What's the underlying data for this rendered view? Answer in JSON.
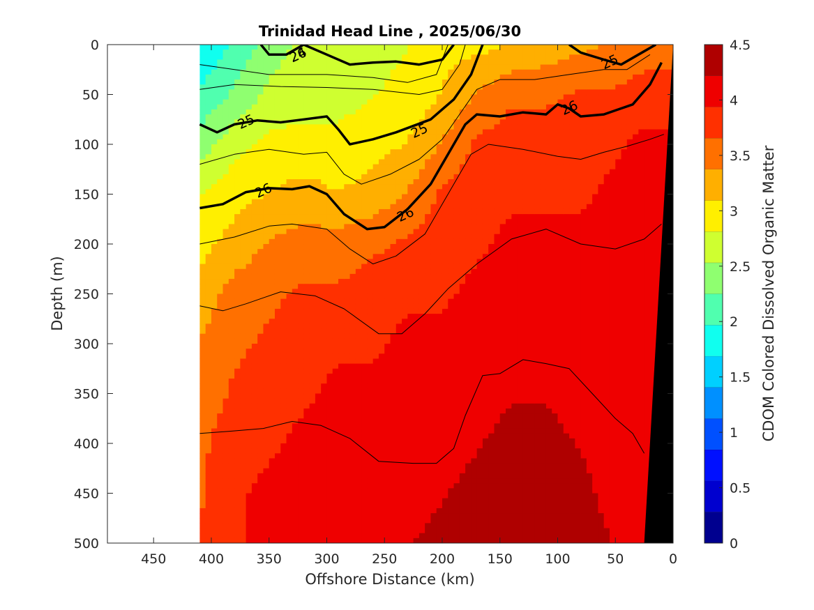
{
  "chart_data": {
    "type": "heatmap",
    "title": "Trinidad Head Line , 2025/06/30",
    "xlabel": "Offshore Distance (km)",
    "ylabel": "Depth (m)",
    "xlim": [
      490,
      0
    ],
    "ylim": [
      0,
      500
    ],
    "x_reversed": true,
    "y_reversed": true,
    "x_ticks": [
      450,
      400,
      350,
      300,
      250,
      200,
      150,
      100,
      50,
      0
    ],
    "y_ticks": [
      0,
      50,
      100,
      150,
      200,
      250,
      300,
      350,
      400,
      450,
      500
    ],
    "colorbar": {
      "label": "CDOM Colored Dissolved Organic Matter",
      "range": [
        0,
        4.5
      ],
      "ticks": [
        0,
        0.5,
        1,
        1.5,
        2,
        2.5,
        3,
        3.5,
        4,
        4.5
      ],
      "levels": [
        0,
        0.25,
        0.5,
        0.75,
        1,
        1.25,
        1.5,
        1.75,
        2,
        2.25,
        2.5,
        2.75,
        3,
        3.25,
        3.5,
        3.75,
        4,
        4.25,
        4.5
      ],
      "colors": [
        "#00008f",
        "#0000cf",
        "#0010ff",
        "#0050ff",
        "#0090ff",
        "#00d0ff",
        "#10ffef",
        "#50ffaf",
        "#8fff70",
        "#cfff30",
        "#ffef00",
        "#ffaf00",
        "#ff7000",
        "#ff3000",
        "#ef0000",
        "#af0000"
      ]
    },
    "data_extent_km": [
      410,
      0
    ],
    "cdom_field": {
      "x_km": [
        410,
        380,
        350,
        320,
        290,
        260,
        230,
        200,
        170,
        140,
        110,
        80,
        50,
        25
      ],
      "depth_m": [
        0,
        50,
        100,
        150,
        200,
        250,
        300,
        350,
        400,
        450,
        500
      ],
      "values": [
        [
          1.7,
          2.0,
          2.4,
          2.6,
          2.6,
          2.7,
          2.8,
          3.0,
          3.0,
          3.1,
          3.2,
          3.3,
          3.4,
          3.5
        ],
        [
          2.0,
          2.3,
          2.6,
          2.7,
          2.7,
          2.8,
          2.9,
          3.1,
          3.4,
          3.6,
          3.6,
          3.7,
          3.7,
          3.8
        ],
        [
          2.4,
          2.7,
          2.9,
          2.9,
          2.9,
          3.0,
          3.1,
          3.4,
          3.7,
          3.8,
          3.8,
          3.8,
          3.9,
          4.0
        ],
        [
          2.8,
          3.0,
          3.1,
          3.2,
          3.1,
          3.2,
          3.4,
          3.7,
          3.8,
          3.9,
          3.9,
          3.9,
          4.0,
          4.0
        ],
        [
          3.0,
          3.2,
          3.4,
          3.5,
          3.5,
          3.6,
          3.7,
          3.8,
          3.9,
          4.0,
          4.0,
          4.0,
          4.0,
          4.0
        ],
        [
          3.2,
          3.5,
          3.6,
          3.7,
          3.7,
          3.8,
          3.9,
          3.9,
          4.0,
          4.0,
          4.0,
          4.1,
          4.0,
          4.0
        ],
        [
          3.4,
          3.6,
          3.7,
          3.8,
          3.9,
          3.9,
          4.0,
          4.0,
          4.1,
          4.1,
          4.1,
          4.1,
          4.0,
          4.0
        ],
        [
          3.5,
          3.7,
          3.8,
          3.9,
          4.0,
          4.0,
          4.0,
          4.1,
          4.1,
          4.2,
          4.2,
          4.1,
          4.1,
          4.0
        ],
        [
          3.6,
          3.8,
          3.9,
          4.0,
          4.0,
          4.0,
          4.1,
          4.1,
          4.2,
          4.3,
          4.3,
          4.2,
          4.1,
          4.0
        ],
        [
          3.6,
          3.9,
          4.0,
          4.0,
          4.1,
          4.1,
          4.1,
          4.2,
          4.3,
          4.4,
          4.4,
          4.3,
          4.1,
          4.0
        ],
        [
          3.7,
          3.9,
          4.0,
          4.0,
          4.1,
          4.1,
          4.2,
          4.3,
          4.4,
          4.5,
          4.5,
          4.4,
          4.2,
          4.1
        ]
      ]
    },
    "contour_labels": [
      "24",
      "25",
      "25",
      "25",
      "26",
      "26",
      "26",
      "26"
    ],
    "density_contours": [
      {
        "label": "24",
        "bold": true,
        "points": [
          [
            357,
            0
          ],
          [
            350,
            10
          ],
          [
            335,
            10
          ],
          [
            320,
            0
          ],
          [
            300,
            10
          ],
          [
            280,
            20
          ],
          [
            260,
            18
          ],
          [
            240,
            17
          ],
          [
            220,
            20
          ],
          [
            200,
            15
          ],
          [
            190,
            0
          ]
        ]
      },
      {
        "label": "25",
        "bold": true,
        "points": [
          [
            410,
            80
          ],
          [
            395,
            88
          ],
          [
            380,
            80
          ],
          [
            360,
            76
          ],
          [
            340,
            78
          ],
          [
            320,
            75
          ],
          [
            300,
            72
          ],
          [
            290,
            85
          ],
          [
            280,
            100
          ],
          [
            260,
            95
          ],
          [
            240,
            88
          ],
          [
            210,
            75
          ],
          [
            190,
            55
          ],
          [
            175,
            30
          ],
          [
            165,
            0
          ]
        ]
      },
      {
        "label": "25",
        "bold": true,
        "points": [
          [
            90,
            0
          ],
          [
            80,
            8
          ],
          [
            60,
            15
          ],
          [
            45,
            20
          ],
          [
            30,
            10
          ],
          [
            15,
            0
          ]
        ]
      },
      {
        "label": "26",
        "bold": true,
        "points": [
          [
            410,
            164
          ],
          [
            390,
            160
          ],
          [
            370,
            148
          ],
          [
            350,
            144
          ],
          [
            330,
            145
          ],
          [
            315,
            142
          ],
          [
            300,
            150
          ],
          [
            285,
            170
          ],
          [
            265,
            185
          ],
          [
            250,
            183
          ],
          [
            230,
            165
          ],
          [
            210,
            140
          ],
          [
            195,
            110
          ],
          [
            180,
            80
          ],
          [
            170,
            70
          ],
          [
            150,
            72
          ],
          [
            130,
            68
          ],
          [
            110,
            70
          ],
          [
            100,
            60
          ],
          [
            90,
            64
          ],
          [
            80,
            72
          ],
          [
            60,
            70
          ],
          [
            35,
            60
          ],
          [
            20,
            40
          ],
          [
            10,
            18
          ]
        ]
      },
      {
        "points": [
          [
            410,
            20
          ],
          [
            380,
            25
          ],
          [
            350,
            30
          ],
          [
            300,
            30
          ],
          [
            260,
            33
          ],
          [
            230,
            38
          ],
          [
            205,
            30
          ],
          [
            195,
            0
          ]
        ]
      },
      {
        "points": [
          [
            410,
            45
          ],
          [
            380,
            40
          ],
          [
            340,
            42
          ],
          [
            300,
            43
          ],
          [
            260,
            45
          ],
          [
            220,
            50
          ],
          [
            200,
            45
          ],
          [
            185,
            20
          ],
          [
            180,
            0
          ]
        ]
      },
      {
        "points": [
          [
            410,
            120
          ],
          [
            380,
            110
          ],
          [
            350,
            105
          ],
          [
            320,
            110
          ],
          [
            300,
            108
          ],
          [
            285,
            130
          ],
          [
            270,
            140
          ],
          [
            245,
            130
          ],
          [
            220,
            115
          ],
          [
            200,
            95
          ],
          [
            185,
            70
          ],
          [
            170,
            45
          ],
          [
            150,
            35
          ],
          [
            120,
            35
          ],
          [
            90,
            30
          ],
          [
            60,
            25
          ],
          [
            40,
            25
          ],
          [
            20,
            10
          ]
        ]
      },
      {
        "points": [
          [
            410,
            200
          ],
          [
            380,
            193
          ],
          [
            350,
            182
          ],
          [
            330,
            180
          ],
          [
            300,
            185
          ],
          [
            280,
            205
          ],
          [
            260,
            220
          ],
          [
            240,
            212
          ],
          [
            215,
            190
          ],
          [
            195,
            150
          ],
          [
            175,
            110
          ],
          [
            160,
            100
          ],
          [
            130,
            105
          ],
          [
            100,
            112
          ],
          [
            80,
            115
          ],
          [
            60,
            108
          ],
          [
            40,
            102
          ],
          [
            20,
            95
          ],
          [
            8,
            90
          ]
        ]
      },
      {
        "points": [
          [
            410,
            262
          ],
          [
            390,
            267
          ],
          [
            370,
            260
          ],
          [
            340,
            248
          ],
          [
            310,
            252
          ],
          [
            285,
            265
          ],
          [
            255,
            290
          ],
          [
            235,
            290
          ],
          [
            215,
            270
          ],
          [
            195,
            245
          ],
          [
            170,
            220
          ],
          [
            140,
            195
          ],
          [
            110,
            185
          ],
          [
            80,
            200
          ],
          [
            50,
            205
          ],
          [
            25,
            195
          ],
          [
            10,
            180
          ]
        ]
      },
      {
        "points": [
          [
            410,
            390
          ],
          [
            385,
            388
          ],
          [
            355,
            385
          ],
          [
            330,
            378
          ],
          [
            305,
            382
          ],
          [
            280,
            395
          ],
          [
            255,
            418
          ],
          [
            225,
            420
          ],
          [
            205,
            420
          ],
          [
            190,
            405
          ],
          [
            180,
            372
          ],
          [
            165,
            332
          ],
          [
            150,
            330
          ],
          [
            130,
            316
          ],
          [
            110,
            320
          ],
          [
            90,
            325
          ],
          [
            70,
            350
          ],
          [
            50,
            375
          ],
          [
            35,
            390
          ],
          [
            25,
            410
          ]
        ]
      }
    ],
    "land_bottom_polygon_km_m": [
      [
        25,
        500
      ],
      [
        0,
        500
      ],
      [
        0,
        0
      ]
    ],
    "land_color": "#000000",
    "grid": false
  }
}
